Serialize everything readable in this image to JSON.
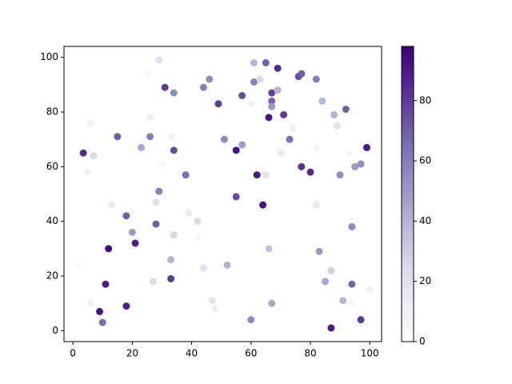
{
  "chart_data": {
    "type": "scatter",
    "colormap": "Purples",
    "x": [
      3.5,
      2,
      5,
      6,
      7,
      6,
      9,
      10,
      11,
      12,
      13,
      15,
      18,
      18,
      20,
      21,
      23,
      25,
      26,
      26,
      27,
      28,
      28,
      29,
      29,
      30,
      31,
      33,
      33,
      33,
      34,
      34,
      34,
      38,
      39,
      42,
      42,
      44,
      44,
      46,
      47,
      48,
      49,
      51,
      52,
      55,
      55,
      57,
      57,
      60,
      60,
      61,
      61,
      62,
      63,
      64,
      65,
      65,
      66,
      66,
      67,
      67,
      67,
      67,
      69,
      69,
      70,
      71,
      73,
      74,
      76,
      77,
      77,
      80,
      82,
      82,
      82,
      83,
      84,
      85,
      87,
      87,
      88,
      89,
      90,
      91,
      92,
      93,
      94,
      94,
      94,
      94,
      95,
      97,
      97,
      98,
      99,
      100
    ],
    "y": [
      65,
      24,
      58,
      76,
      64,
      10,
      7,
      3,
      17,
      30,
      46,
      71,
      42,
      9,
      36,
      32,
      67,
      94,
      78,
      71,
      18,
      47,
      39,
      51,
      99,
      61,
      89,
      71,
      26,
      19,
      87,
      66,
      35,
      57,
      43,
      40,
      34,
      89,
      23,
      92,
      11,
      8,
      83,
      70,
      24,
      66,
      49,
      86,
      68,
      83,
      4,
      98,
      91,
      57,
      92,
      46,
      98,
      57,
      78,
      30,
      87,
      84,
      82,
      10,
      96,
      88,
      65,
      79,
      70,
      74,
      93,
      94,
      60,
      58,
      92,
      67,
      46,
      29,
      84,
      18,
      22,
      1,
      79,
      75,
      57,
      11,
      81,
      65,
      80,
      38,
      17,
      10,
      60,
      61,
      4,
      67,
      67,
      15
    ],
    "c": [
      85,
      3,
      10,
      8,
      25,
      10,
      92,
      65,
      90,
      95,
      15,
      70,
      70,
      88,
      50,
      90,
      45,
      5,
      12,
      60,
      25,
      20,
      70,
      60,
      20,
      5,
      80,
      8,
      40,
      80,
      55,
      75,
      25,
      65,
      15,
      25,
      5,
      60,
      20,
      55,
      20,
      12,
      80,
      55,
      40,
      92,
      75,
      75,
      50,
      10,
      55,
      40,
      60,
      90,
      25,
      92,
      70,
      20,
      92,
      35,
      78,
      68,
      50,
      45,
      85,
      40,
      15,
      80,
      65,
      8,
      75,
      70,
      82,
      85,
      60,
      5,
      15,
      50,
      40,
      45,
      30,
      90,
      40,
      20,
      55,
      40,
      70,
      5,
      3,
      55,
      68,
      5,
      50,
      55,
      80,
      3,
      90,
      10
    ],
    "xlim": [
      -3,
      104
    ],
    "ylim": [
      -4,
      104
    ],
    "clim": [
      0,
      98
    ],
    "xticks": [
      0,
      20,
      40,
      60,
      80,
      100
    ],
    "yticks": [
      0,
      20,
      40,
      60,
      80,
      100
    ],
    "cticks": [
      0,
      20,
      40,
      60,
      80
    ]
  }
}
